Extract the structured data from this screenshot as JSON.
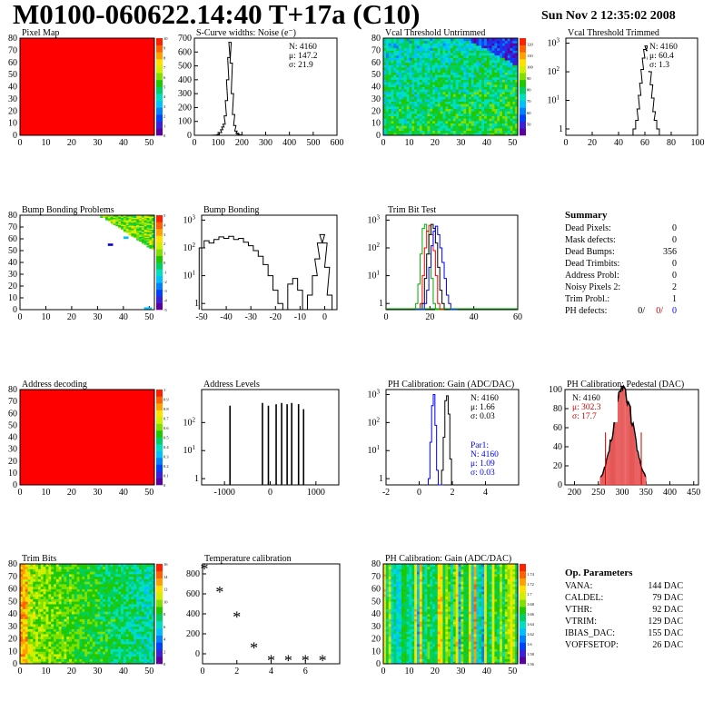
{
  "header": {
    "title": "M0100-060622.14:40 T+17a (C10)",
    "date": "Sun Nov  2 12:35:02 2008"
  },
  "chart_data": [
    {
      "id": "pixel-map",
      "type": "heatmap",
      "title": "Pixel Map",
      "xlim": [
        0,
        52
      ],
      "ylim": [
        0,
        80
      ],
      "xticks": [
        0,
        10,
        20,
        30,
        40,
        50
      ],
      "yticks": [
        0,
        10,
        20,
        30,
        40,
        50,
        60,
        70,
        80
      ],
      "pattern": "uniform",
      "uniform_value": 10,
      "zlim": [
        0,
        10
      ],
      "zticks": [
        0,
        1,
        2,
        3,
        4,
        5,
        6,
        7,
        8,
        9,
        10
      ]
    },
    {
      "id": "scurve-noise",
      "type": "histogram",
      "title": "S-Curve widths: Noise (e⁻)",
      "xlim": [
        0,
        600
      ],
      "ylim": [
        0,
        700
      ],
      "log": false,
      "xticks": [
        0,
        100,
        200,
        300,
        400,
        500,
        600
      ],
      "yticks": [
        0,
        100,
        200,
        300,
        400,
        500,
        600,
        700
      ],
      "x": [
        80,
        90,
        100,
        110,
        115,
        120,
        125,
        130,
        135,
        140,
        145,
        150,
        155,
        160,
        165,
        170,
        175,
        180,
        185,
        190,
        200
      ],
      "values": [
        1,
        2,
        5,
        20,
        40,
        60,
        80,
        140,
        250,
        400,
        560,
        670,
        520,
        300,
        150,
        70,
        30,
        15,
        8,
        4,
        1
      ],
      "stats": [
        "N: 4160",
        "μ: 147.2",
        "σ: 21.9"
      ]
    },
    {
      "id": "vcal-untrimmed",
      "type": "heatmap",
      "title": "Vcal Threshold Untrimmed",
      "xlim": [
        0,
        52
      ],
      "ylim": [
        0,
        80
      ],
      "xticks": [
        0,
        10,
        20,
        30,
        40,
        50
      ],
      "yticks": [
        0,
        10,
        20,
        30,
        40,
        50,
        60,
        70,
        80
      ],
      "pattern": "gradient-untrimmed",
      "zlim": [
        40,
        125
      ],
      "zticks": [
        50,
        60,
        70,
        80,
        90,
        100,
        110,
        120
      ]
    },
    {
      "id": "vcal-trimmed",
      "type": "histogram",
      "title": "Vcal Threshold Trimmed",
      "xlim": [
        0,
        100
      ],
      "ylim": [
        0.6,
        1500
      ],
      "log": true,
      "xticks": [
        0,
        20,
        40,
        60,
        80,
        100
      ],
      "yticks": [
        1,
        10,
        100,
        1000
      ],
      "x": [
        52,
        54,
        55,
        56,
        57,
        58,
        59,
        60,
        61,
        62,
        63,
        64,
        65,
        66,
        67,
        68,
        70
      ],
      "values": [
        1,
        2,
        5,
        15,
        40,
        120,
        300,
        600,
        800,
        550,
        280,
        100,
        35,
        12,
        4,
        2,
        1
      ],
      "stats": [
        "N: 4160",
        "μ: 60.4",
        "σ:  1.3"
      ]
    },
    {
      "id": "bump-problems",
      "type": "heatmap",
      "title": "Bump Bonding Problems",
      "xlim": [
        0,
        52
      ],
      "ylim": [
        0,
        80
      ],
      "xticks": [
        0,
        10,
        20,
        30,
        40,
        50
      ],
      "yticks": [
        0,
        10,
        20,
        30,
        40,
        50,
        60,
        70,
        80
      ],
      "pattern": "triangle-bump",
      "zlim": [
        -5,
        5
      ],
      "zticks": [
        -5,
        -4,
        -3,
        -2,
        -1,
        0,
        1,
        2,
        3,
        4,
        5
      ]
    },
    {
      "id": "bump-bonding",
      "type": "histogram",
      "title": "Bump Bonding",
      "xlim": [
        -50,
        5
      ],
      "ylim": [
        0.6,
        1500
      ],
      "log": true,
      "xticks": [
        -50,
        -40,
        -30,
        -20,
        -10,
        0
      ],
      "yticks": [
        1,
        10,
        100,
        1000
      ],
      "x": [
        -50,
        -48,
        -46,
        -44,
        -42,
        -40,
        -38,
        -36,
        -34,
        -32,
        -30,
        -28,
        -26,
        -24,
        -22,
        -20,
        -18,
        -16,
        -14,
        -12,
        -10,
        -8,
        -6,
        -4,
        -3,
        -2,
        -1,
        0,
        1,
        2
      ],
      "values": [
        100,
        180,
        150,
        200,
        250,
        220,
        260,
        200,
        220,
        160,
        120,
        80,
        50,
        25,
        10,
        3,
        1,
        0,
        5,
        8,
        3,
        0,
        2,
        10,
        40,
        150,
        300,
        150,
        20,
        2
      ]
    },
    {
      "id": "trim-bit-test",
      "type": "histogram",
      "title": "Trim Bit Test",
      "xlim": [
        0,
        60
      ],
      "ylim": [
        0.6,
        1500
      ],
      "log": true,
      "xticks": [
        0,
        20,
        40,
        60
      ],
      "yticks": [
        1,
        10,
        100,
        1000
      ],
      "x": [
        14,
        15,
        16,
        17,
        18,
        19,
        20,
        21,
        22,
        23,
        24,
        25,
        26,
        27,
        28,
        29,
        30,
        31,
        32
      ],
      "series": [
        {
          "color": "#00aa00",
          "values": [
            1,
            5,
            60,
            500,
            700,
            400,
            60,
            8,
            1,
            0,
            0,
            0,
            0,
            0,
            0,
            0,
            0,
            0,
            0
          ]
        },
        {
          "color": "#ff0000",
          "values": [
            0,
            0,
            1,
            10,
            100,
            400,
            650,
            300,
            80,
            10,
            1,
            0,
            0,
            0,
            0,
            0,
            0,
            0,
            0
          ]
        },
        {
          "color": "#000000",
          "values": [
            0,
            0,
            0,
            1,
            8,
            60,
            300,
            700,
            500,
            150,
            20,
            3,
            1,
            0,
            0,
            0,
            0,
            0,
            0
          ]
        },
        {
          "color": "#0000ff",
          "values": [
            0,
            0,
            0,
            0,
            1,
            3,
            20,
            120,
            400,
            600,
            300,
            100,
            30,
            8,
            2,
            1,
            0,
            0,
            0
          ]
        }
      ]
    },
    {
      "id": "address-decoding",
      "type": "heatmap",
      "title": "Address decoding",
      "xlim": [
        0,
        52
      ],
      "ylim": [
        0,
        80
      ],
      "xticks": [
        0,
        10,
        20,
        30,
        40,
        50
      ],
      "yticks": [
        0,
        10,
        20,
        30,
        40,
        50,
        60,
        70,
        80
      ],
      "pattern": "uniform",
      "uniform_value": 1,
      "zlim": [
        0,
        1
      ],
      "zticks": [
        0,
        0.1,
        0.2,
        0.3,
        0.4,
        0.5,
        0.6,
        0.7,
        0.8,
        0.9,
        1
      ]
    },
    {
      "id": "address-levels",
      "type": "histogram",
      "title": "Address Levels",
      "xlim": [
        -1500,
        1500
      ],
      "ylim": [
        0.6,
        1500
      ],
      "log": true,
      "xticks": [
        -1000,
        0,
        1000
      ],
      "yticks": [
        1,
        10,
        100
      ],
      "x": [
        -880,
        -170,
        -40,
        130,
        250,
        370,
        470,
        620,
        730
      ],
      "values": [
        400,
        500,
        400,
        450,
        500,
        450,
        500,
        450,
        300
      ]
    },
    {
      "id": "ph-gain",
      "type": "histogram",
      "title": "PH Calibration: Gain (ADC/DAC)",
      "xlim": [
        -2,
        6
      ],
      "ylim": [
        0.6,
        1500
      ],
      "log": true,
      "xticks": [
        -2,
        0,
        2,
        4
      ],
      "yticks": [
        1,
        10,
        100,
        1000
      ],
      "x": [
        1.2,
        1.3,
        1.4,
        1.5,
        1.6,
        1.7,
        1.8,
        1.9,
        2.0
      ],
      "series": [
        {
          "color": "#000000",
          "values": [
            0,
            0,
            2,
            30,
            600,
            900,
            200,
            5,
            0
          ]
        },
        {
          "color": "#0000ff",
          "values": [
            1,
            20,
            400,
            1000,
            80,
            2,
            0,
            0,
            0
          ],
          "x_shift": -0.6
        }
      ],
      "stats": [
        "N: 4160",
        "μ: 1.66",
        "σ: 0.03"
      ],
      "stats2": [
        "Par1:",
        "N: 4160",
        "μ: 1.09",
        "σ: 0.03"
      ]
    },
    {
      "id": "ph-pedestal",
      "type": "histogram",
      "title": "PH Calibration: Pedestal (DAC)",
      "xlim": [
        180,
        460
      ],
      "ylim": [
        0,
        100
      ],
      "log": false,
      "xticks": [
        200,
        250,
        300,
        350,
        400,
        450
      ],
      "yticks": [
        0,
        20,
        40,
        60,
        80,
        100
      ],
      "mean": 302.3,
      "sigma": 17.7,
      "peak": 98,
      "stats": [
        "N: 4160",
        "μ: 302.3",
        "σ: 17.7"
      ]
    },
    {
      "id": "trim-bits",
      "type": "heatmap",
      "title": "Trim Bits",
      "xlim": [
        0,
        52
      ],
      "ylim": [
        0,
        80
      ],
      "xticks": [
        0,
        10,
        20,
        30,
        40,
        50
      ],
      "yticks": [
        0,
        10,
        20,
        30,
        40,
        50,
        60,
        70,
        80
      ],
      "pattern": "trim-bits",
      "zlim": [
        0,
        16
      ],
      "zticks": [
        0,
        2,
        4,
        6,
        8,
        10,
        12,
        14,
        16
      ]
    },
    {
      "id": "temperature",
      "type": "scatter",
      "title": "Temperature calibration",
      "xlim": [
        0,
        8
      ],
      "ylim": [
        -100,
        900
      ],
      "xticks": [
        0,
        2,
        4,
        6
      ],
      "yticks": [
        0,
        200,
        400,
        600,
        800
      ],
      "x": [
        0,
        1,
        2,
        3,
        4,
        5,
        6,
        7
      ],
      "y": [
        850,
        620,
        370,
        60,
        -70,
        -70,
        -70,
        -70
      ]
    },
    {
      "id": "ph-gain-map",
      "type": "heatmap",
      "title": "PH Calibration: Gain (ADC/DAC)",
      "xlim": [
        0,
        52
      ],
      "ylim": [
        0,
        80
      ],
      "xticks": [
        0,
        10,
        20,
        30,
        40,
        50
      ],
      "yticks": [
        0,
        10,
        20,
        30,
        40,
        50,
        60,
        70,
        80
      ],
      "pattern": "gain-columns",
      "zlim": [
        1.56,
        1.76
      ],
      "zticks": [
        1.56,
        1.58,
        1.6,
        1.62,
        1.64,
        1.66,
        1.68,
        1.7,
        1.72,
        1.74
      ]
    }
  ],
  "summary": {
    "title": "Summary",
    "rows": [
      {
        "label": "Dead Pixels:",
        "value": "0"
      },
      {
        "label": "Mask defects:",
        "value": "0"
      },
      {
        "label": "Dead Bumps:",
        "value": "356"
      },
      {
        "label": "Dead Trimbits:",
        "value": "0"
      },
      {
        "label": "Address Probl:",
        "value": "0"
      },
      {
        "label": "Noisy Pixels 2:",
        "value": "2"
      },
      {
        "label": "Trim Probl.:",
        "value": "1"
      }
    ],
    "ph_label": "PH defects:",
    "ph_values": [
      "0/",
      "0/",
      "0"
    ]
  },
  "op_params": {
    "title": "Op. Parameters",
    "rows": [
      {
        "label": "VANA:",
        "value": "144 DAC"
      },
      {
        "label": "CALDEL:",
        "value": "79 DAC"
      },
      {
        "label": "VTHR:",
        "value": "92 DAC"
      },
      {
        "label": "VTRIM:",
        "value": "129 DAC"
      },
      {
        "label": "IBIAS_DAC:",
        "value": "155 DAC"
      },
      {
        "label": "VOFFSETOP:",
        "value": "26 DAC"
      }
    ]
  }
}
